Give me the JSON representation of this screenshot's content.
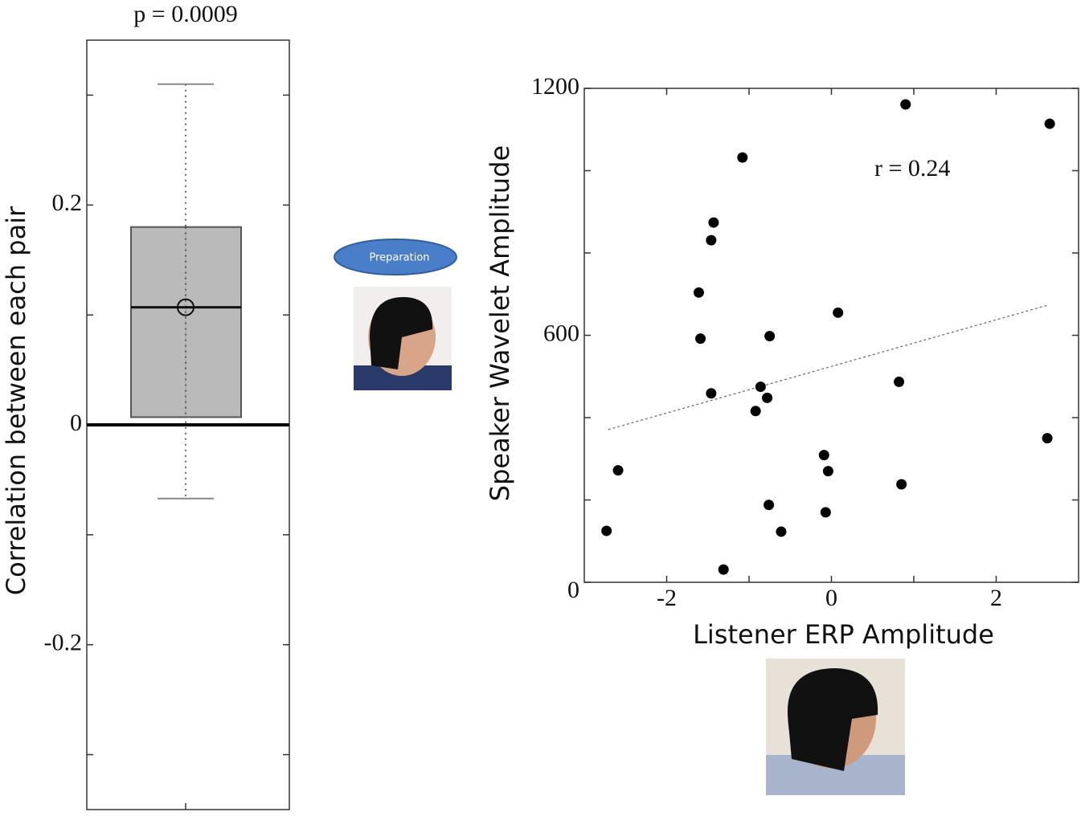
{
  "chart_data": [
    {
      "type": "box",
      "title": "p = 0.0009",
      "ylabel": "Correlation between each pair",
      "ylim": [
        -0.35,
        0.35
      ],
      "yticks": [
        0.2,
        0,
        -0.2
      ],
      "yminor_ticks": [
        0.3,
        0.1,
        -0.1,
        -0.3
      ],
      "hline": 0,
      "color": "#b3b3b3",
      "box": {
        "whisker_low": -0.067,
        "q1": 0.007,
        "median": 0.107,
        "mean": 0.107,
        "q3": 0.18,
        "whisker_high": 0.31
      }
    },
    {
      "type": "scatter",
      "xlabel": "Listener ERP Amplitude",
      "ylabel": "Speaker Wavelet Amplitude",
      "annotation": "r = 0.24",
      "color": "#000000",
      "xlim": [
        -3,
        3
      ],
      "ylim": [
        0,
        1200
      ],
      "xticks": [
        -2,
        0,
        2
      ],
      "yticks": [
        0,
        600,
        1200
      ],
      "xminor_ticks": [
        -1,
        1
      ],
      "yminor_ticks": [
        200,
        400,
        800,
        1000
      ],
      "x": [
        0.9,
        2.65,
        -1.08,
        -1.43,
        -1.46,
        -1.61,
        -1.59,
        -0.75,
        0.08,
        -1.46,
        -0.86,
        -0.78,
        -0.92,
        0.82,
        2.62,
        -2.59,
        -0.09,
        -0.04,
        0.85,
        -0.76,
        -0.07,
        -2.73,
        -0.61,
        -1.31
      ],
      "y": [
        1161,
        1114,
        1032,
        874,
        831,
        704,
        592,
        598,
        655,
        459,
        475,
        448,
        416,
        487,
        350,
        272,
        309,
        270,
        238,
        188,
        170,
        125,
        123,
        31
      ],
      "fit_line": {
        "x": [
          -2.71,
          2.64
        ],
        "y": [
          371,
          674
        ]
      }
    }
  ],
  "bubble_text": "Preparation"
}
